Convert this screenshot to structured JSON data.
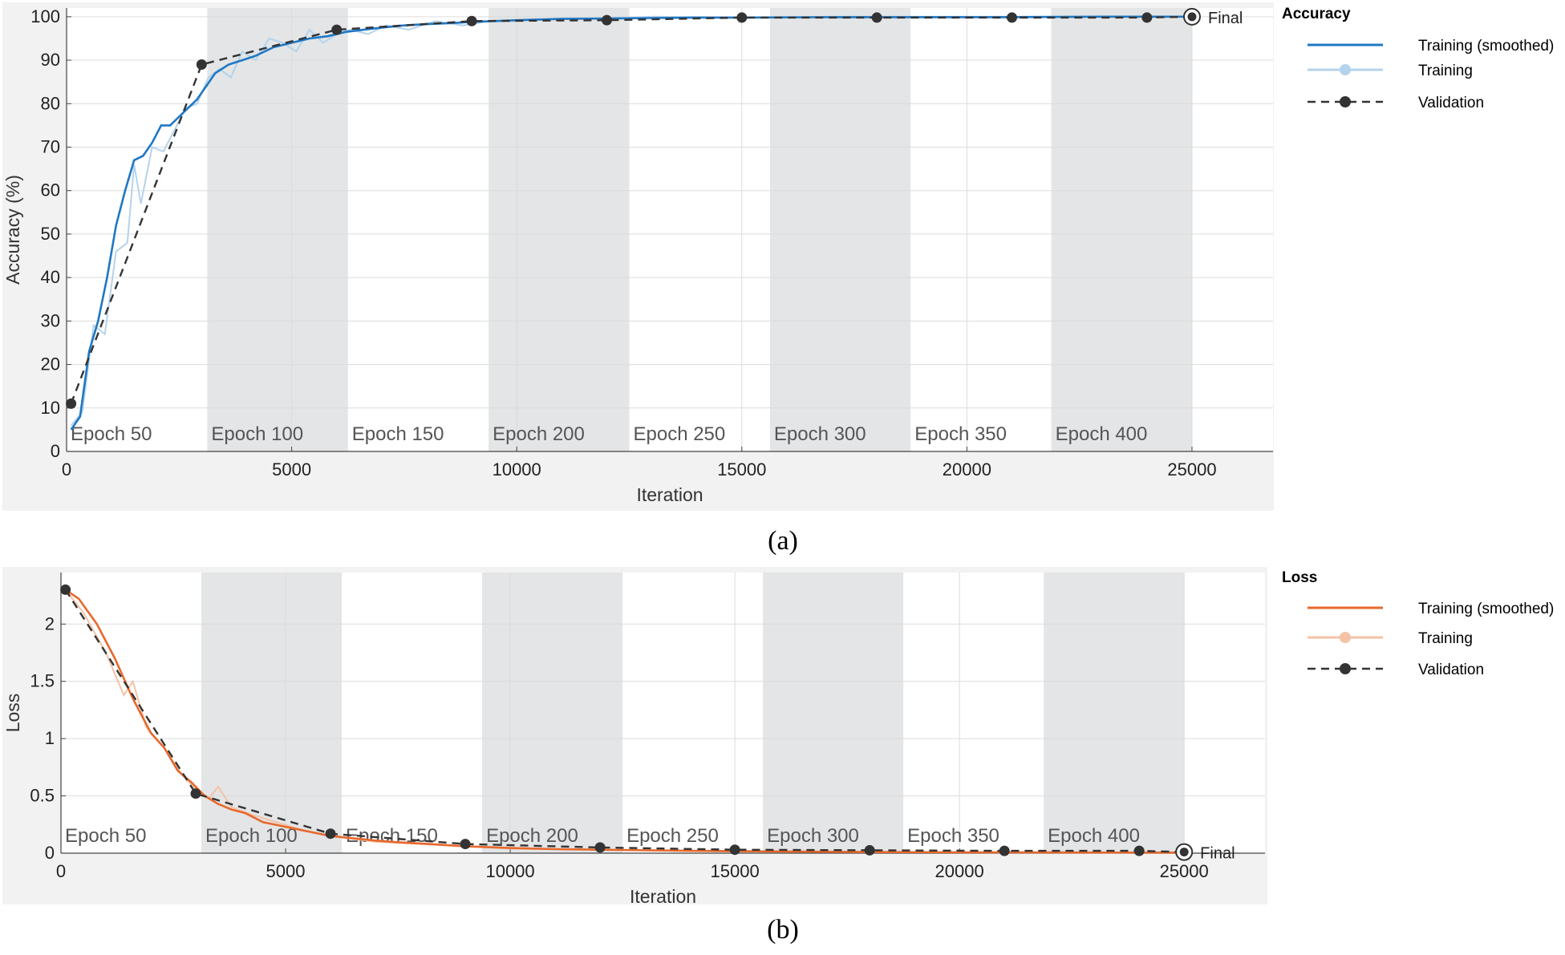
{
  "chart_data": [
    {
      "type": "line",
      "panel_label": "(a)",
      "ylabel": "Accuracy (%)",
      "xlabel": "Iteration",
      "xlim": [
        0,
        26800
      ],
      "ylim": [
        0,
        102
      ],
      "xticks": [
        0,
        5000,
        10000,
        15000,
        20000,
        25000
      ],
      "yticks": [
        0,
        10,
        20,
        30,
        40,
        50,
        60,
        70,
        80,
        90,
        100
      ],
      "grid": true,
      "legend": {
        "title": "Accuracy",
        "placement": "right",
        "entries": [
          "Training (smoothed)",
          "Training",
          "Validation"
        ]
      },
      "epoch_labels": [
        "Epoch 50",
        "Epoch 100",
        "Epoch 150",
        "Epoch 200",
        "Epoch 250",
        "Epoch 300",
        "Epoch 350",
        "Epoch 400"
      ],
      "epoch_bands": [
        [
          0,
          3125
        ],
        [
          3125,
          6250
        ],
        [
          6250,
          9375
        ],
        [
          9375,
          12500
        ],
        [
          12500,
          15625
        ],
        [
          15625,
          18750
        ],
        [
          18750,
          21875
        ],
        [
          21875,
          25000
        ]
      ],
      "final_label": "Final",
      "series": [
        {
          "name": "Training (smoothed)",
          "color": "#1f77c4",
          "x": [
            100,
            300,
            500,
            700,
            900,
            1100,
            1300,
            1500,
            1700,
            1900,
            2100,
            2300,
            2500,
            2700,
            2900,
            3100,
            3300,
            3600,
            3900,
            4200,
            4600,
            5000,
            5400,
            5800,
            6200,
            6600,
            7000,
            7500,
            8000,
            8500,
            9000,
            9500,
            10000,
            11000,
            12000,
            13000,
            14000,
            15000,
            17000,
            19000,
            21000,
            23000,
            24000,
            25000
          ],
          "y": [
            5,
            8,
            23,
            30,
            40,
            52,
            60,
            67,
            68,
            71,
            75,
            75,
            77,
            79,
            81,
            84,
            87,
            89,
            90,
            91,
            93,
            94,
            95,
            95.5,
            96.5,
            97,
            97.5,
            98,
            98.3,
            98.5,
            98.8,
            99,
            99.2,
            99.5,
            99.6,
            99.7,
            99.8,
            99.8,
            99.9,
            99.9,
            99.9,
            100,
            100,
            100
          ]
        },
        {
          "name": "Training",
          "color": "#b4d3ec",
          "x": [
            100,
            350,
            600,
            850,
            1100,
            1350,
            1500,
            1650,
            1900,
            2150,
            2400,
            2650,
            2900,
            3150,
            3400,
            3650,
            3900,
            4200,
            4500,
            4800,
            5100,
            5400,
            5700,
            6000,
            6300,
            6700,
            7100,
            7600,
            8200,
            8800,
            9400,
            10000,
            11000,
            12000,
            13000,
            15000,
            17000,
            20000,
            23000,
            25000
          ],
          "y": [
            6,
            9,
            29,
            27,
            46,
            48,
            66,
            57,
            70,
            69,
            74,
            79,
            80,
            86,
            88,
            86,
            92,
            90,
            95,
            94,
            92,
            97,
            94,
            96,
            97,
            96,
            98,
            97,
            99,
            98,
            99,
            99,
            99.6,
            99.4,
            100,
            99.8,
            100,
            100,
            100,
            100
          ]
        },
        {
          "name": "Validation",
          "color": "#333333",
          "x": [
            100,
            3000,
            6000,
            9000,
            12000,
            15000,
            18000,
            21000,
            24000,
            25000
          ],
          "y": [
            11,
            89,
            97,
            99,
            99.2,
            99.8,
            99.8,
            99.8,
            99.8,
            100
          ]
        }
      ]
    },
    {
      "type": "line",
      "panel_label": "(b)",
      "ylabel": "Loss",
      "xlabel": "Iteration",
      "xlim": [
        0,
        26800
      ],
      "ylim": [
        0,
        2.45
      ],
      "xticks": [
        0,
        5000,
        10000,
        15000,
        20000,
        25000
      ],
      "yticks": [
        0,
        0.5,
        1,
        1.5,
        2
      ],
      "ytick_labels": [
        "0",
        "0.5",
        "1",
        "1.5",
        "2"
      ],
      "grid": true,
      "legend": {
        "title": "Loss",
        "placement": "right",
        "entries": [
          "Training (smoothed)",
          "Training",
          "Validation"
        ]
      },
      "epoch_labels": [
        "Epoch 50",
        "Epoch 100",
        "Epoch 150",
        "Epoch 200",
        "Epoch 250",
        "Epoch 300",
        "Epoch 350",
        "Epoch 400"
      ],
      "epoch_bands": [
        [
          0,
          3125
        ],
        [
          3125,
          6250
        ],
        [
          6250,
          9375
        ],
        [
          9375,
          12500
        ],
        [
          12500,
          15625
        ],
        [
          15625,
          18750
        ],
        [
          18750,
          21875
        ],
        [
          21875,
          25000
        ]
      ],
      "final_label": "Final",
      "series": [
        {
          "name": "Training (smoothed)",
          "color": "#e8682c",
          "x": [
            100,
            400,
            800,
            1200,
            1600,
            2000,
            2300,
            2600,
            2900,
            3200,
            3500,
            3800,
            4100,
            4500,
            5000,
            5500,
            6000,
            6500,
            7000,
            7500,
            8000,
            9000,
            10000,
            11000,
            12000,
            14000,
            16000,
            18000,
            20000,
            22000,
            24000,
            25000
          ],
          "y": [
            2.3,
            2.22,
            2.0,
            1.7,
            1.35,
            1.05,
            0.92,
            0.72,
            0.62,
            0.5,
            0.43,
            0.38,
            0.35,
            0.27,
            0.23,
            0.19,
            0.15,
            0.13,
            0.11,
            0.095,
            0.085,
            0.06,
            0.045,
            0.035,
            0.03,
            0.02,
            0.015,
            0.01,
            0.008,
            0.006,
            0.005,
            0.005
          ]
        },
        {
          "name": "Training",
          "color": "#f4c2a6",
          "x": [
            100,
            500,
            1000,
            1400,
            1600,
            1900,
            2300,
            2700,
            3000,
            3300,
            3500,
            3800,
            4300,
            4800,
            5400,
            6000,
            7000,
            8000,
            9000,
            10000,
            12000,
            15000,
            18000,
            21000,
            25000
          ],
          "y": [
            2.3,
            2.1,
            1.75,
            1.38,
            1.5,
            1.1,
            0.92,
            0.68,
            0.56,
            0.48,
            0.58,
            0.4,
            0.33,
            0.27,
            0.2,
            0.15,
            0.1,
            0.08,
            0.06,
            0.04,
            0.03,
            0.015,
            0.01,
            0.008,
            0.005
          ]
        },
        {
          "name": "Validation",
          "color": "#333333",
          "x": [
            100,
            3000,
            6000,
            9000,
            12000,
            15000,
            18000,
            21000,
            24000,
            25000
          ],
          "y": [
            2.3,
            0.52,
            0.17,
            0.08,
            0.05,
            0.03,
            0.025,
            0.02,
            0.02,
            0.01
          ]
        }
      ]
    }
  ]
}
